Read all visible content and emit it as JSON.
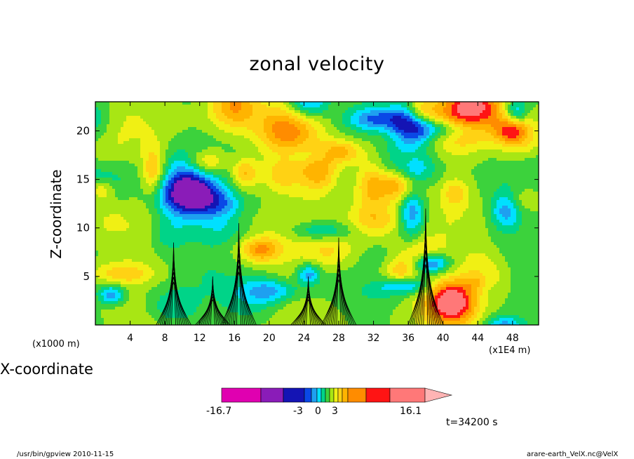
{
  "chart_data": {
    "type": "heatmap",
    "title": "zonal velocity",
    "xlabel": "X-coordinate",
    "ylabel": "Z-coordinate",
    "x_unit_left": "(x1000 m)",
    "x_unit_right": "(x1E4 m)",
    "x_ticks": [
      4,
      8,
      12,
      16,
      20,
      24,
      28,
      32,
      36,
      40,
      44,
      48
    ],
    "y_ticks": [
      5,
      10,
      15,
      20
    ],
    "xlim": [
      0,
      51
    ],
    "ylim": [
      0,
      23
    ],
    "colorbar": {
      "labels": [
        "-16.7",
        "-3",
        "0",
        "3",
        "16.1"
      ],
      "colors": [
        "#e000b0",
        "#8a1cb8",
        "#1414b4",
        "#0a48e6",
        "#1ea0f0",
        "#00e0ff",
        "#00d488",
        "#3cd23c",
        "#a8e614",
        "#f0f014",
        "#ffd214",
        "#ffb400",
        "#ff8c00",
        "#ff1414",
        "#ff7878",
        "#ffb4b4"
      ],
      "extend": "max"
    },
    "mountains": [
      {
        "x": 9.0,
        "height": 8.5
      },
      {
        "x": 13.5,
        "height": 5
      },
      {
        "x": 16.5,
        "height": 10.5
      },
      {
        "x": 24.5,
        "height": 5
      },
      {
        "x": 28.0,
        "height": 9
      },
      {
        "x": 38.0,
        "height": 12
      }
    ]
  },
  "time_label": "t=34200 s",
  "footer_left": "/usr/bin/gpview   2010-11-15",
  "footer_right": "arare-earth_VelX.nc@VelX"
}
